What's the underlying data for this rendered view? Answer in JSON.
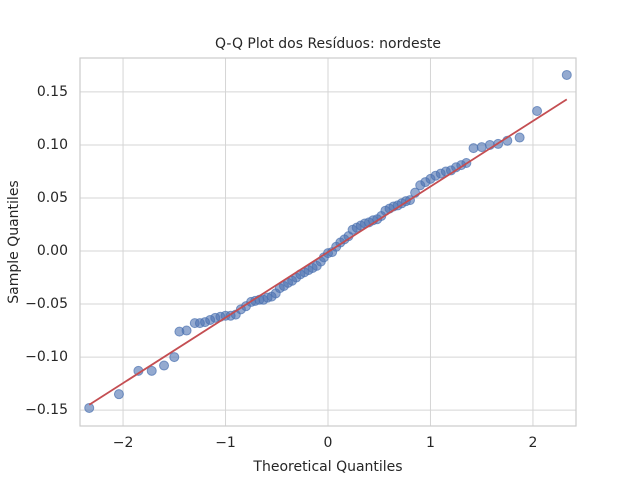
{
  "chart_data": {
    "type": "scatter",
    "title": "Q-Q Plot dos Resíduos: nordeste",
    "x_label": "Theoretical Quantiles",
    "y_label": "Sample Quantiles",
    "xlim": [
      -2.42,
      2.42
    ],
    "ylim": [
      -0.165,
      0.182
    ],
    "xticks": [
      {
        "value": -2,
        "label": "−2"
      },
      {
        "value": -1,
        "label": "−1"
      },
      0,
      1,
      2
    ],
    "yticks": [
      {
        "value": -0.15,
        "label": "−0.15"
      },
      {
        "value": -0.1,
        "label": "−0.10"
      },
      {
        "value": -0.05,
        "label": "−0.05"
      },
      {
        "value": 0,
        "label": "0.00"
      },
      {
        "value": 0.05,
        "label": "0.05"
      },
      {
        "value": 0.1,
        "label": "0.10"
      },
      {
        "value": 0.15,
        "label": "0.15"
      }
    ],
    "grid": true,
    "points": {
      "color": "#4c72b0",
      "x": [
        -2.33,
        -2.04,
        -1.85,
        -1.72,
        -1.6,
        -1.5,
        -1.45,
        -1.38,
        -1.3,
        -1.25,
        -1.2,
        -1.15,
        -1.1,
        -1.05,
        -1.0,
        -0.95,
        -0.9,
        -0.85,
        -0.8,
        -0.75,
        -0.71,
        -0.67,
        -0.63,
        -0.59,
        -0.55,
        -0.51,
        -0.47,
        -0.43,
        -0.39,
        -0.35,
        -0.31,
        -0.27,
        -0.23,
        -0.19,
        -0.15,
        -0.11,
        -0.07,
        -0.04,
        0.0,
        0.04,
        0.08,
        0.12,
        0.16,
        0.2,
        0.24,
        0.28,
        0.32,
        0.36,
        0.4,
        0.44,
        0.48,
        0.52,
        0.56,
        0.6,
        0.64,
        0.68,
        0.72,
        0.76,
        0.8,
        0.85,
        0.9,
        0.95,
        1.0,
        1.05,
        1.1,
        1.15,
        1.2,
        1.25,
        1.3,
        1.35,
        1.42,
        1.5,
        1.58,
        1.66,
        1.75,
        1.87,
        2.04,
        2.33
      ],
      "y": [
        -0.148,
        -0.135,
        -0.113,
        -0.113,
        -0.108,
        -0.1,
        -0.076,
        -0.075,
        -0.068,
        -0.068,
        -0.067,
        -0.065,
        -0.063,
        -0.062,
        -0.061,
        -0.061,
        -0.06,
        -0.055,
        -0.052,
        -0.048,
        -0.047,
        -0.046,
        -0.046,
        -0.044,
        -0.043,
        -0.04,
        -0.035,
        -0.033,
        -0.03,
        -0.028,
        -0.025,
        -0.022,
        -0.02,
        -0.018,
        -0.016,
        -0.014,
        -0.01,
        -0.006,
        -0.002,
        -0.001,
        0.004,
        0.008,
        0.011,
        0.014,
        0.02,
        0.022,
        0.024,
        0.026,
        0.027,
        0.029,
        0.03,
        0.033,
        0.038,
        0.04,
        0.042,
        0.043,
        0.045,
        0.047,
        0.048,
        0.055,
        0.062,
        0.065,
        0.068,
        0.071,
        0.073,
        0.075,
        0.076,
        0.079,
        0.081,
        0.083,
        0.097,
        0.098,
        0.1,
        0.101,
        0.104,
        0.107,
        0.132,
        0.166
      ]
    },
    "fit_line": {
      "color": "#c44e52",
      "x": [
        -2.33,
        2.33
      ],
      "y": [
        -0.145,
        0.143
      ]
    }
  }
}
